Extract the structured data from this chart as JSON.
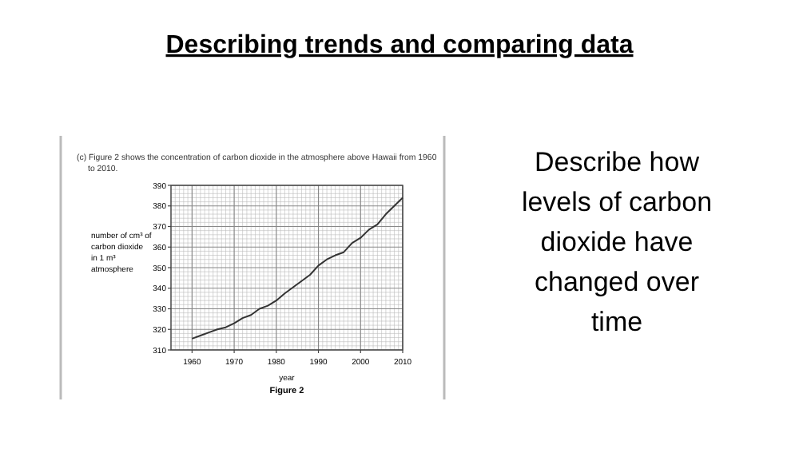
{
  "chart_data": {
    "type": "line",
    "title": "Describing trends and comparing data",
    "subtitle": "(c) Figure 2 shows the concentration of carbon dioxide in the atmosphere above Hawaii from 1960 to 2010.",
    "xlabel": "year",
    "ylabel": "number of cm³ of carbon dioxide in 1 m³ atmosphere",
    "annotations": [
      "Figure 2",
      "Describe how levels of carbon dioxide have changed over time"
    ],
    "x": [
      1960,
      1962,
      1964,
      1966,
      1968,
      1970,
      1972,
      1974,
      1976,
      1978,
      1980,
      1982,
      1984,
      1986,
      1988,
      1990,
      1992,
      1994,
      1996,
      1998,
      2000,
      2002,
      2004,
      2006,
      2008,
      2010
    ],
    "series": [
      {
        "color": "#333333",
        "values": [
          315.5,
          317,
          318.5,
          320,
          321,
          323,
          325.5,
          327,
          330,
          331.5,
          334,
          337.5,
          340.5,
          343.5,
          346.5,
          351,
          354,
          356,
          357.5,
          362,
          364.5,
          368.5,
          371,
          376,
          380,
          384
        ]
      }
    ],
    "xlim": [
      1955,
      2010
    ],
    "xticks": [
      1960,
      1970,
      1980,
      1990,
      2000,
      2010
    ],
    "ylim": [
      310,
      390
    ],
    "yticks": [
      310,
      320,
      330,
      340,
      350,
      360,
      370,
      380,
      390
    ],
    "grid": true,
    "marker": "none",
    "line_style": "solid"
  }
}
